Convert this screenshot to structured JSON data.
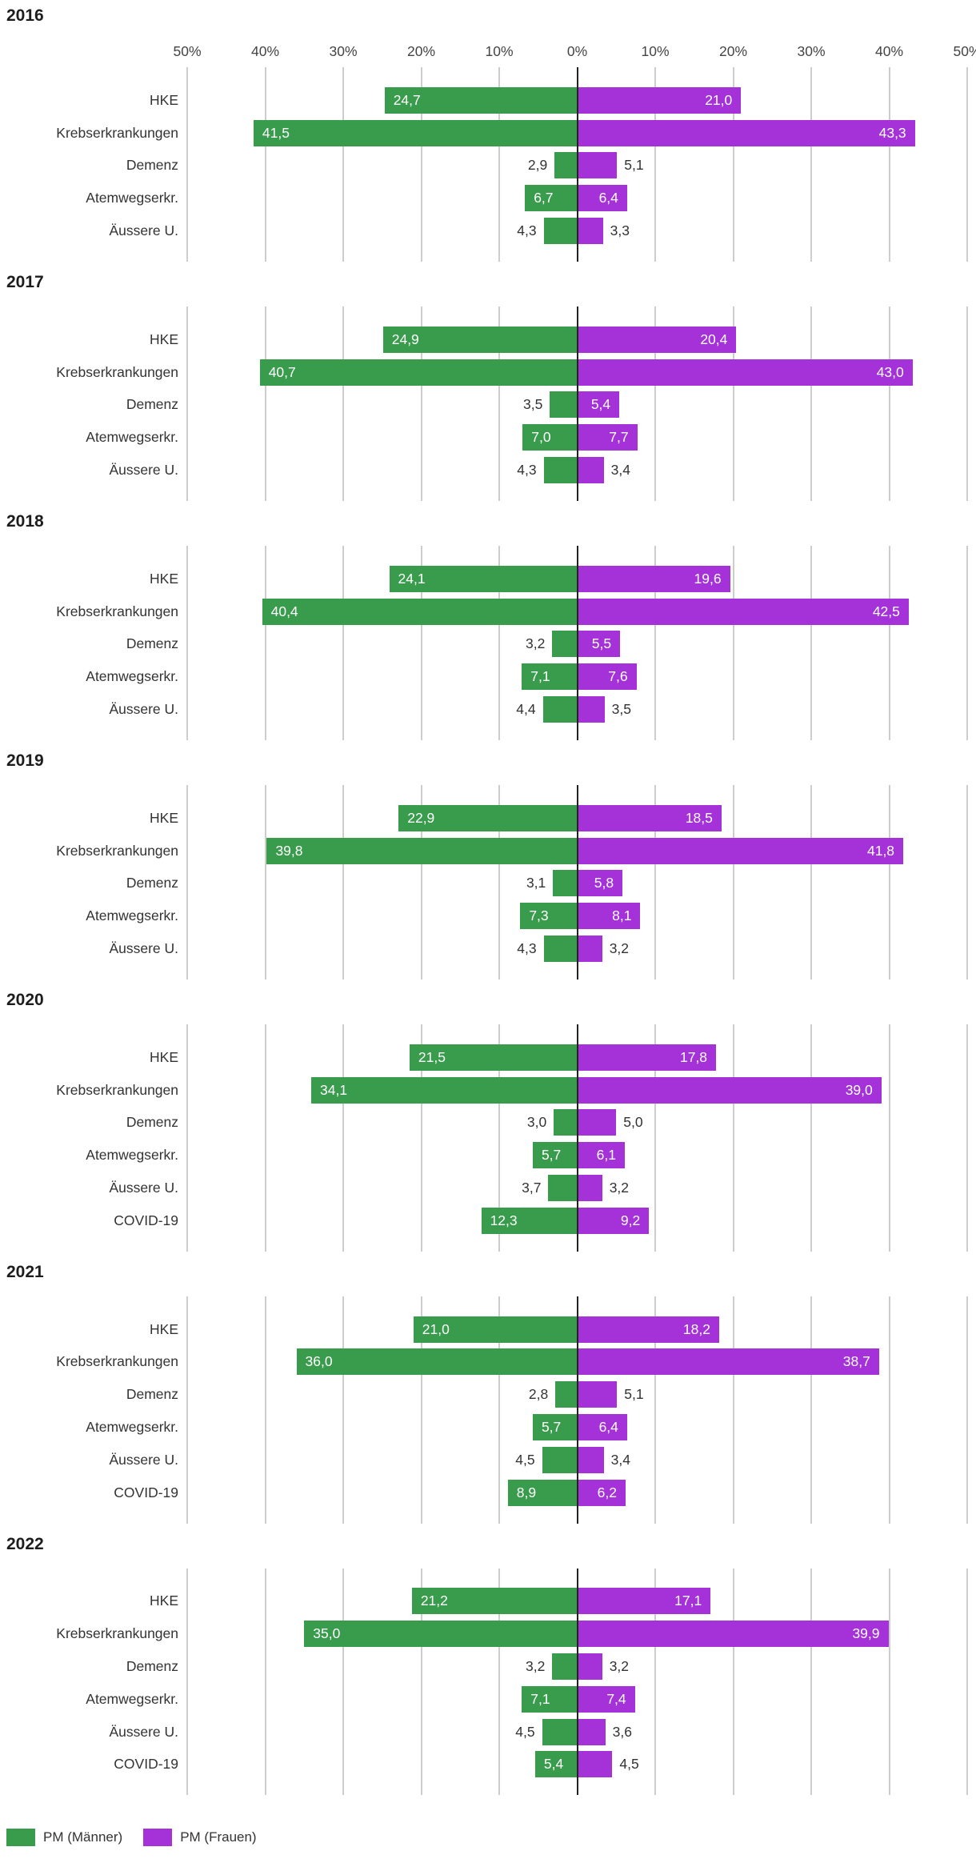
{
  "page": {
    "background": "#ffffff"
  },
  "legend": {
    "items": [
      {
        "label": "PM (Männer)",
        "color": "#389c4c"
      },
      {
        "label": "PM (Frauen)",
        "color": "#a432d8"
      }
    ]
  },
  "chart_data": {
    "type": "bar",
    "variant": "diverging-horizontal-small-multiples",
    "unit": "%",
    "number_format": "decimal-comma-1",
    "grid": "vertical-lines-on",
    "legend_position": "bottom-left",
    "axis": {
      "min": -50,
      "max": 50,
      "tick_step": 10,
      "tick_labels": [
        "50%",
        "40%",
        "30%",
        "20%",
        "10%",
        "0%",
        "10%",
        "20%",
        "30%",
        "40%",
        "50%"
      ],
      "ticks_shown_on_first_panel_only": true
    },
    "series": [
      {
        "name": "PM (Männer)",
        "side": "left",
        "color": "#389c4c"
      },
      {
        "name": "PM (Frauen)",
        "side": "right",
        "color": "#a432d8"
      }
    ],
    "panels": [
      {
        "year": "2016",
        "categories": [
          "HKE",
          "Krebserkrankungen",
          "Demenz",
          "Atemwegserkr.",
          "Äussere U."
        ],
        "maenner": [
          24.7,
          41.5,
          2.9,
          6.7,
          4.3
        ],
        "frauen": [
          21.0,
          43.3,
          5.1,
          6.4,
          3.3
        ]
      },
      {
        "year": "2017",
        "categories": [
          "HKE",
          "Krebserkrankungen",
          "Demenz",
          "Atemwegserkr.",
          "Äussere U."
        ],
        "maenner": [
          24.9,
          40.7,
          3.5,
          7.0,
          4.3
        ],
        "frauen": [
          20.4,
          43.0,
          5.4,
          7.7,
          3.4
        ]
      },
      {
        "year": "2018",
        "categories": [
          "HKE",
          "Krebserkrankungen",
          "Demenz",
          "Atemwegserkr.",
          "Äussere U."
        ],
        "maenner": [
          24.1,
          40.4,
          3.2,
          7.1,
          4.4
        ],
        "frauen": [
          19.6,
          42.5,
          5.5,
          7.6,
          3.5
        ]
      },
      {
        "year": "2019",
        "categories": [
          "HKE",
          "Krebserkrankungen",
          "Demenz",
          "Atemwegserkr.",
          "Äussere U."
        ],
        "maenner": [
          22.9,
          39.8,
          3.1,
          7.3,
          4.3
        ],
        "frauen": [
          18.5,
          41.8,
          5.8,
          8.1,
          3.2
        ]
      },
      {
        "year": "2020",
        "categories": [
          "HKE",
          "Krebserkrankungen",
          "Demenz",
          "Atemwegserkr.",
          "Äussere U.",
          "COVID-19"
        ],
        "maenner": [
          21.5,
          34.1,
          3.0,
          5.7,
          3.7,
          12.3
        ],
        "frauen": [
          17.8,
          39.0,
          5.0,
          6.1,
          3.2,
          9.2
        ]
      },
      {
        "year": "2021",
        "categories": [
          "HKE",
          "Krebserkrankungen",
          "Demenz",
          "Atemwegserkr.",
          "Äussere U.",
          "COVID-19"
        ],
        "maenner": [
          21.0,
          36.0,
          2.8,
          5.7,
          4.5,
          8.9
        ],
        "frauen": [
          18.2,
          38.7,
          5.1,
          6.4,
          3.4,
          6.2
        ]
      },
      {
        "year": "2022",
        "categories": [
          "HKE",
          "Krebserkrankungen",
          "Demenz",
          "Atemwegserkr.",
          "Äussere U.",
          "COVID-19"
        ],
        "maenner": [
          21.2,
          35.0,
          3.2,
          7.1,
          4.5,
          5.4
        ],
        "frauen": [
          17.1,
          39.9,
          3.2,
          7.4,
          3.6,
          4.5
        ]
      }
    ],
    "style": {
      "gridline_color": "#cdcdcd",
      "centerline_color": "#222222",
      "inside_label_color": "#ffffff",
      "outside_label_color": "#333333"
    }
  }
}
